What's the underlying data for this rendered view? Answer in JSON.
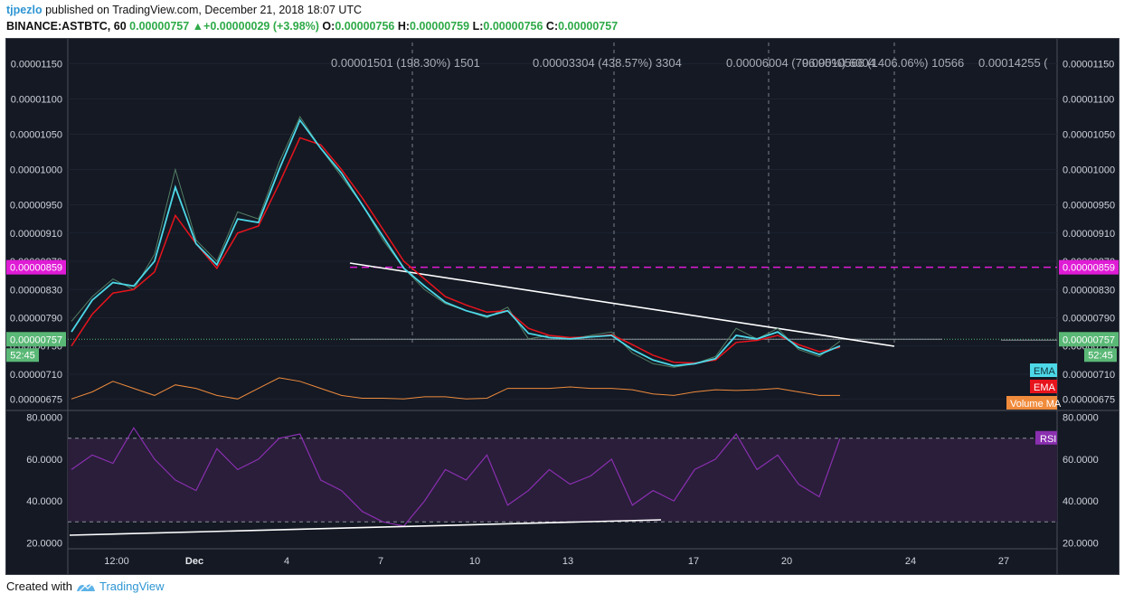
{
  "header": {
    "author": "tjpezlo",
    "published_text": "published on TradingView.com, December 21, 2018 18:07 UTC",
    "symbol": "BINANCE:ASTBTC, 60",
    "last": "0.00000757",
    "change_arrow": "▲",
    "change": "+0.00000029 (+3.98%)",
    "o_label": "O:",
    "o_value": "0.00000756",
    "h_label": "H:",
    "h_value": "0.00000759",
    "l_label": "L:",
    "l_value": "0.00000756",
    "c_label": "C:",
    "c_value": "0.00000757"
  },
  "footer": {
    "created_with": "Created with",
    "brand": "TradingView",
    "logo_icon": "tradingview-logo-icon"
  },
  "colors": {
    "background": "#141924",
    "ema_fast": "#4dd8e8",
    "ema_slow": "#e8141c",
    "volume_ma": "#f08b3c",
    "rsi": "#8a2fb0",
    "magenta": "#e01bd6",
    "price_tag": "#5ab876"
  },
  "chart_data": [
    {
      "type": "line",
      "title": "BINANCE:ASTBTC, 60",
      "price_axis_ticks": [
        "0.00001150",
        "0.00001100",
        "0.00001050",
        "0.00001000",
        "0.00000950",
        "0.00000910",
        "0.00000870",
        "0.00000830",
        "0.00000790",
        "0.00000750",
        "0.00000710",
        "0.00000675"
      ],
      "x_tick_labels": [
        "12:00",
        "Dec",
        "4",
        "7",
        "10",
        "13",
        "17",
        "20",
        "24",
        "27"
      ],
      "ylim": [
        6.6e-06,
        1.18e-05
      ],
      "series": [
        {
          "name": "Price",
          "values": [
            7.85e-06,
            8.2e-06,
            8.45e-06,
            8.3e-06,
            8.8e-06,
            1e-05,
            9e-06,
            8.7e-06,
            9.4e-06,
            9.3e-06,
            1.01e-05,
            1.075e-05,
            1.03e-05,
            9.9e-06,
            9.5e-06,
            9e-06,
            8.6e-06,
            8.3e-06,
            8.1e-06,
            8e-06,
            7.9e-06,
            8.05e-06,
            7.6e-06,
            7.65e-06,
            7.6e-06,
            7.65e-06,
            7.7e-06,
            7.4e-06,
            7.25e-06,
            7.2e-06,
            7.25e-06,
            7.35e-06,
            7.75e-06,
            7.6e-06,
            7.75e-06,
            7.45e-06,
            7.35e-06,
            7.57e-06
          ]
        },
        {
          "name": "EMA",
          "values": [
            7.7e-06,
            8.15e-06,
            8.4e-06,
            8.35e-06,
            8.7e-06,
            9.75e-06,
            8.95e-06,
            8.65e-06,
            9.3e-06,
            9.25e-06,
            1e-05,
            1.07e-05,
            1.03e-05,
            9.95e-06,
            9.5e-06,
            9.05e-06,
            8.6e-06,
            8.35e-06,
            8.12e-06,
            8e-06,
            7.92e-06,
            8e-06,
            7.68e-06,
            7.62e-06,
            7.6e-06,
            7.63e-06,
            7.65e-06,
            7.45e-06,
            7.3e-06,
            7.22e-06,
            7.25e-06,
            7.32e-06,
            7.65e-06,
            7.6e-06,
            7.7e-06,
            7.48e-06,
            7.38e-06,
            7.5e-06
          ]
        },
        {
          "name": "EMA",
          "values": [
            7.5e-06,
            7.95e-06,
            8.25e-06,
            8.3e-06,
            8.55e-06,
            9.35e-06,
            8.95e-06,
            8.6e-06,
            9.1e-06,
            9.2e-06,
            9.8e-06,
            1.045e-05,
            1.035e-05,
            1e-05,
            9.6e-06,
            9.15e-06,
            8.7e-06,
            8.45e-06,
            8.2e-06,
            8.08e-06,
            7.98e-06,
            8e-06,
            7.75e-06,
            7.65e-06,
            7.62e-06,
            7.63e-06,
            7.66e-06,
            7.52e-06,
            7.37e-06,
            7.27e-06,
            7.26e-06,
            7.3e-06,
            7.55e-06,
            7.58e-06,
            7.65e-06,
            7.52e-06,
            7.42e-06,
            7.48e-06
          ]
        },
        {
          "name": "Volume MA",
          "values": [
            6.75e-06,
            6.85e-06,
            7e-06,
            6.9e-06,
            6.8e-06,
            6.95e-06,
            6.9e-06,
            6.8e-06,
            6.75e-06,
            6.9e-06,
            7.05e-06,
            7e-06,
            6.9e-06,
            6.8e-06,
            6.76e-06,
            6.76e-06,
            6.75e-06,
            6.78e-06,
            6.78e-06,
            6.75e-06,
            6.76e-06,
            6.9e-06,
            6.9e-06,
            6.9e-06,
            6.92e-06,
            6.9e-06,
            6.9e-06,
            6.88e-06,
            6.82e-06,
            6.8e-06,
            6.85e-06,
            6.88e-06,
            6.87e-06,
            6.88e-06,
            6.9e-06,
            6.85e-06,
            6.8e-06,
            6.8e-06
          ]
        }
      ],
      "annotations": {
        "horizontal_level": "0.00000859",
        "current_price": "0.00000757",
        "countdown": "52:45",
        "measurements": [
          "0.00001501 (198.30%) 1501",
          "0.00003304 (438.57%) 3304",
          "0.00006004 (796.95%) 6004",
          "0.00010566 (1406.06%) 10566",
          "0.00014255 ("
        ],
        "legend": [
          "EMA",
          "EMA",
          "Volume MA"
        ]
      }
    },
    {
      "type": "line",
      "title": "RSI",
      "y_ticks": [
        "80.0000",
        "60.0000",
        "40.0000",
        "20.0000"
      ],
      "ylim": [
        18,
        82
      ],
      "bands": [
        30,
        70
      ],
      "series": [
        {
          "name": "RSI",
          "values": [
            55,
            62,
            58,
            75,
            60,
            50,
            45,
            65,
            55,
            60,
            70,
            72,
            50,
            45,
            35,
            30,
            28,
            40,
            55,
            50,
            62,
            38,
            45,
            55,
            48,
            52,
            60,
            38,
            45,
            40,
            55,
            60,
            72,
            55,
            62,
            48,
            42,
            70
          ]
        }
      ]
    }
  ]
}
